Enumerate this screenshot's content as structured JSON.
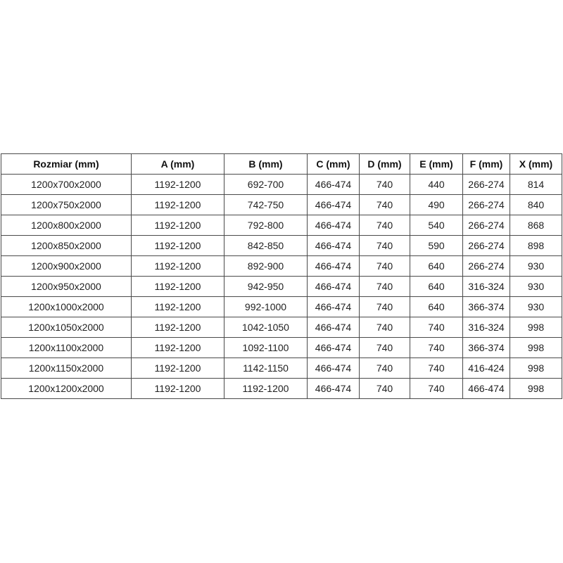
{
  "colors": {
    "border": "#4a4a4a",
    "outer_border": "#3a3a3a",
    "text": "#212121",
    "header_text": "#111111",
    "background": "#ffffff"
  },
  "table": {
    "columns": [
      "Rozmiar (mm)",
      "A (mm)",
      "B (mm)",
      "C (mm)",
      "D (mm)",
      "E (mm)",
      "F (mm)",
      "X (mm)"
    ],
    "rows": [
      [
        "1200x700x2000",
        "1192-1200",
        "692-700",
        "466-474",
        "740",
        "440",
        "266-274",
        "814"
      ],
      [
        "1200x750x2000",
        "1192-1200",
        "742-750",
        "466-474",
        "740",
        "490",
        "266-274",
        "840"
      ],
      [
        "1200x800x2000",
        "1192-1200",
        "792-800",
        "466-474",
        "740",
        "540",
        "266-274",
        "868"
      ],
      [
        "1200x850x2000",
        "1192-1200",
        "842-850",
        "466-474",
        "740",
        "590",
        "266-274",
        "898"
      ],
      [
        "1200x900x2000",
        "1192-1200",
        "892-900",
        "466-474",
        "740",
        "640",
        "266-274",
        "930"
      ],
      [
        "1200x950x2000",
        "1192-1200",
        "942-950",
        "466-474",
        "740",
        "640",
        "316-324",
        "930"
      ],
      [
        "1200x1000x2000",
        "1192-1200",
        "992-1000",
        "466-474",
        "740",
        "640",
        "366-374",
        "930"
      ],
      [
        "1200x1050x2000",
        "1192-1200",
        "1042-1050",
        "466-474",
        "740",
        "740",
        "316-324",
        "998"
      ],
      [
        "1200x1100x2000",
        "1192-1200",
        "1092-1100",
        "466-474",
        "740",
        "740",
        "366-374",
        "998"
      ],
      [
        "1200x1150x2000",
        "1192-1200",
        "1142-1150",
        "466-474",
        "740",
        "740",
        "416-424",
        "998"
      ],
      [
        "1200x1200x2000",
        "1192-1200",
        "1192-1200",
        "466-474",
        "740",
        "740",
        "466-474",
        "998"
      ]
    ]
  },
  "chart_data": {
    "type": "table",
    "title": "",
    "columns": [
      "Rozmiar (mm)",
      "A (mm)",
      "B (mm)",
      "C (mm)",
      "D (mm)",
      "E (mm)",
      "F (mm)",
      "X (mm)"
    ],
    "rows": [
      [
        "1200x700x2000",
        "1192-1200",
        "692-700",
        "466-474",
        "740",
        "440",
        "266-274",
        "814"
      ],
      [
        "1200x750x2000",
        "1192-1200",
        "742-750",
        "466-474",
        "740",
        "490",
        "266-274",
        "840"
      ],
      [
        "1200x800x2000",
        "1192-1200",
        "792-800",
        "466-474",
        "740",
        "540",
        "266-274",
        "868"
      ],
      [
        "1200x850x2000",
        "1192-1200",
        "842-850",
        "466-474",
        "740",
        "590",
        "266-274",
        "898"
      ],
      [
        "1200x900x2000",
        "1192-1200",
        "892-900",
        "466-474",
        "740",
        "640",
        "266-274",
        "930"
      ],
      [
        "1200x950x2000",
        "1192-1200",
        "942-950",
        "466-474",
        "740",
        "640",
        "316-324",
        "930"
      ],
      [
        "1200x1000x2000",
        "1192-1200",
        "992-1000",
        "466-474",
        "740",
        "640",
        "366-374",
        "930"
      ],
      [
        "1200x1050x2000",
        "1192-1200",
        "1042-1050",
        "466-474",
        "740",
        "740",
        "316-324",
        "998"
      ],
      [
        "1200x1100x2000",
        "1192-1200",
        "1092-1100",
        "466-474",
        "740",
        "740",
        "366-374",
        "998"
      ],
      [
        "1200x1150x2000",
        "1192-1200",
        "1142-1150",
        "466-474",
        "740",
        "740",
        "416-424",
        "998"
      ],
      [
        "1200x1200x2000",
        "1192-1200",
        "1192-1200",
        "466-474",
        "740",
        "740",
        "466-474",
        "998"
      ]
    ]
  }
}
